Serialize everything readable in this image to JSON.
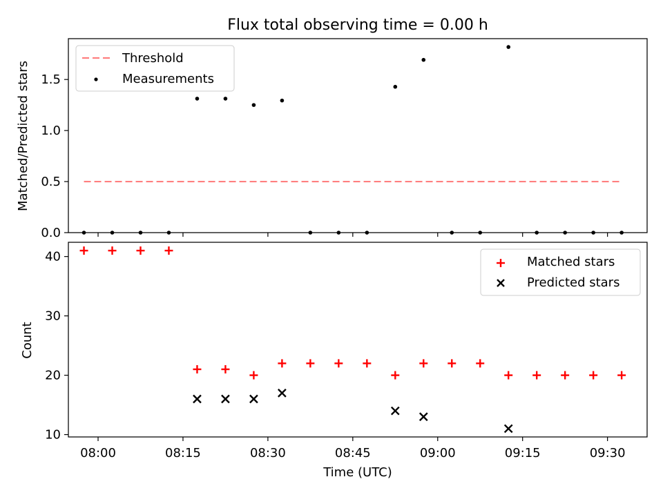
{
  "title": "Flux total observing time = 0.00 h",
  "colors": {
    "threshold": "#ff7f7f",
    "measurement": "#000000",
    "matched": "#ff0000",
    "predicted": "#000000"
  },
  "x_axis": {
    "label": "Time (UTC)",
    "range_minutes": [
      -5.25,
      97.0
    ],
    "ticks": [
      {
        "t": 0,
        "label": "08:00"
      },
      {
        "t": 15,
        "label": "08:15"
      },
      {
        "t": 30,
        "label": "08:30"
      },
      {
        "t": 45,
        "label": "08:45"
      },
      {
        "t": 60,
        "label": "09:00"
      },
      {
        "t": 75,
        "label": "09:15"
      },
      {
        "t": 90,
        "label": "09:30"
      }
    ]
  },
  "chart_data": [
    {
      "type": "scatter",
      "panel": "top",
      "ylabel": "Matched/Predicted stars",
      "ylim": [
        0,
        1.9
      ],
      "yticks": [
        {
          "v": 0,
          "label": "0.0"
        },
        {
          "v": 0.5,
          "label": "0.5"
        },
        {
          "v": 1.0,
          "label": "1.0"
        },
        {
          "v": 1.5,
          "label": "1.5"
        }
      ],
      "legend_position": "top-left",
      "series": [
        {
          "name": "Threshold",
          "kind": "dashed-line",
          "x": [
            -2.5,
            92.5
          ],
          "y": [
            0.5,
            0.5
          ]
        },
        {
          "name": "Measurements",
          "kind": "points",
          "x": [
            -2.5,
            2.5,
            7.5,
            12.5,
            17.5,
            22.5,
            27.5,
            32.5,
            37.5,
            42.5,
            47.5,
            52.5,
            57.5,
            62.5,
            67.5,
            72.5,
            77.5,
            82.5,
            87.5,
            92.5
          ],
          "y": [
            0,
            0,
            0,
            0,
            1.3125,
            1.3125,
            1.25,
            1.294,
            0,
            0,
            0,
            1.4286,
            1.6923,
            0,
            0,
            1.8182,
            0,
            0,
            0,
            0
          ]
        }
      ]
    },
    {
      "type": "scatter",
      "panel": "bottom",
      "ylabel": "Count",
      "ylim": [
        9.6,
        42.4
      ],
      "yticks": [
        {
          "v": 10,
          "label": "10"
        },
        {
          "v": 20,
          "label": "20"
        },
        {
          "v": 30,
          "label": "30"
        },
        {
          "v": 40,
          "label": "40"
        }
      ],
      "legend_position": "top-right",
      "series": [
        {
          "name": "Matched stars",
          "marker": "plus",
          "x": [
            -2.5,
            2.5,
            7.5,
            12.5,
            17.5,
            22.5,
            27.5,
            32.5,
            37.5,
            42.5,
            47.5,
            52.5,
            57.5,
            62.5,
            67.5,
            72.5,
            77.5,
            82.5,
            87.5,
            92.5
          ],
          "y": [
            41,
            41,
            41,
            41,
            21,
            21,
            20,
            22,
            22,
            22,
            22,
            20,
            22,
            22,
            22,
            20,
            20,
            20,
            20,
            20
          ]
        },
        {
          "name": "Predicted stars",
          "marker": "x",
          "x": [
            17.5,
            22.5,
            27.5,
            32.5,
            52.5,
            57.5,
            72.5
          ],
          "y": [
            16,
            16,
            16,
            17,
            14,
            13,
            11
          ]
        }
      ]
    }
  ]
}
